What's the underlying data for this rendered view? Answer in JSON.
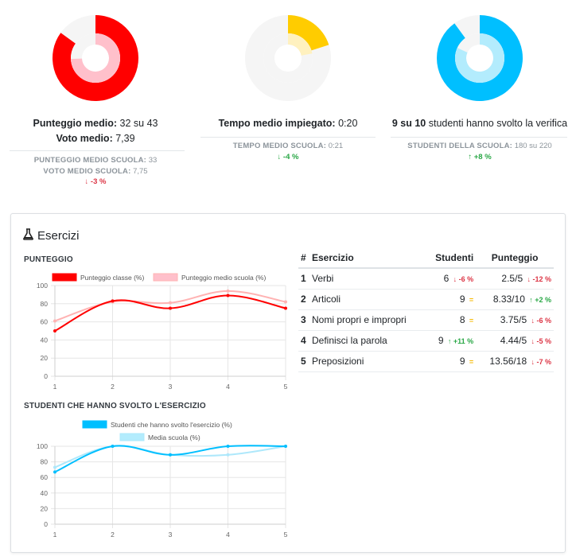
{
  "stats": [
    {
      "id": "score",
      "color": "#ff0000",
      "light_color": "#ffc0cb",
      "outer_fraction": 0.85,
      "inner_fraction": 0.744,
      "line1_bold": "Punteggio medio:",
      "line1_value": "32 su 43",
      "line2_bold": "Voto medio:",
      "line2_value": "7,39",
      "sub1_label": "PUNTEGGIO MEDIO SCUOLA:",
      "sub1_value": "33",
      "sub2_label": "VOTO MEDIO SCUOLA:",
      "sub2_value": "7,75",
      "delta_arrow": "↓",
      "delta": "-3 %"
    },
    {
      "id": "time",
      "color": "#ffcc00",
      "light_color": "#fff1bf",
      "outer_fraction": 0.2,
      "inner_fraction": 0.22,
      "line1_bold": "Tempo medio impiegato:",
      "line1_value": "0:20",
      "sub1_label": "TEMPO MEDIO SCUOLA:",
      "sub1_value": "0:21",
      "delta_arrow": "↓",
      "delta": "-4 %"
    },
    {
      "id": "students",
      "color": "#00bfff",
      "light_color": "#b3ecfd",
      "outer_fraction": 0.9,
      "inner_fraction": 0.818,
      "line1_bold": "9 su 10",
      "line1_value": "studenti hanno svolto la verifica",
      "sub1_label": "STUDENTI DELLA SCUOLA:",
      "sub1_value": "180 su 220",
      "delta_arrow": "↑",
      "delta": "+8 %"
    }
  ],
  "exercises": {
    "title": "Esercizi",
    "icon": "flask-icon",
    "table": {
      "headers": [
        "#",
        "Esercizio",
        "Studenti",
        "Punteggio"
      ],
      "rows": [
        {
          "n": "1",
          "name": "Verbi",
          "students": "6",
          "students_arrow": "↓",
          "students_delta": "-6 %",
          "students_dir": "red",
          "score": "2.5/5",
          "score_arrow": "↓",
          "score_delta": "-12 %",
          "score_dir": "red"
        },
        {
          "n": "2",
          "name": "Articoli",
          "students": "9",
          "students_arrow": "",
          "students_delta": "=",
          "students_dir": "yellow",
          "score": "8.33/10",
          "score_arrow": "↑",
          "score_delta": "+2 %",
          "score_dir": "green"
        },
        {
          "n": "3",
          "name": "Nomi propri e impropri",
          "students": "8",
          "students_arrow": "",
          "students_delta": "=",
          "students_dir": "yellow",
          "score": "3.75/5",
          "score_arrow": "↓",
          "score_delta": "-6 %",
          "score_dir": "red"
        },
        {
          "n": "4",
          "name": "Definisci la parola",
          "students": "9",
          "students_arrow": "↑",
          "students_delta": "+11 %",
          "students_dir": "green",
          "score": "4.44/5",
          "score_arrow": "↓",
          "score_delta": "-5 %",
          "score_dir": "red"
        },
        {
          "n": "5",
          "name": "Preposizioni",
          "students": "9",
          "students_arrow": "",
          "students_delta": "=",
          "students_dir": "yellow",
          "score": "13.56/18",
          "score_arrow": "↓",
          "score_delta": "-7 %",
          "score_dir": "red"
        }
      ]
    }
  },
  "chart_data": [
    {
      "type": "line",
      "title": "PUNTEGGIO",
      "x": [
        1,
        2,
        3,
        4,
        5
      ],
      "ylim": [
        0,
        100
      ],
      "yticks": [
        0,
        20,
        40,
        60,
        80,
        100
      ],
      "grid": true,
      "legend": "top",
      "series": [
        {
          "name": "Punteggio classe (%)",
          "color": "#ff0000",
          "fill": "#ff0000",
          "values": [
            50,
            83,
            75,
            89,
            75
          ]
        },
        {
          "name": "Punteggio medio scuola (%)",
          "color": "#ffb3b3",
          "fill": "#ffc0cb",
          "values": [
            61,
            82,
            81,
            94,
            82
          ]
        }
      ]
    },
    {
      "type": "line",
      "title": "STUDENTI CHE HANNO SVOLTO L'ESERCIZIO",
      "x": [
        1,
        2,
        3,
        4,
        5
      ],
      "ylim": [
        0,
        100
      ],
      "yticks": [
        0,
        20,
        40,
        60,
        80,
        100
      ],
      "grid": true,
      "legend": "top",
      "series": [
        {
          "name": "Studenti che hanno svolto l'esercizio (%)",
          "color": "#00bfff",
          "fill": "#00bfff",
          "values": [
            67,
            100,
            89,
            100,
            100
          ]
        },
        {
          "name": "Media scuola (%)",
          "color": "#aee8fb",
          "fill": "#b3ecfd",
          "values": [
            73,
            100,
            89,
            89,
            100
          ]
        }
      ]
    }
  ]
}
